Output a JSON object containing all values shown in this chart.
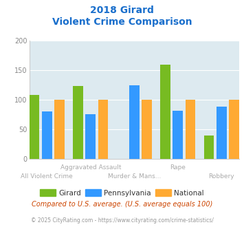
{
  "title_line1": "2018 Girard",
  "title_line2": "Violent Crime Comparison",
  "groups": [
    {
      "girard": 108,
      "pennsylvania": 80,
      "national": 100
    },
    {
      "girard": 123,
      "pennsylvania": 76,
      "national": 100
    },
    {
      "girard": 0,
      "pennsylvania": 125,
      "national": 100
    },
    {
      "girard": 160,
      "pennsylvania": 82,
      "national": 100
    },
    {
      "girard": 40,
      "pennsylvania": 89,
      "national": 100
    }
  ],
  "top_xlabels": [
    "",
    "Aggravated Assault",
    "",
    "Rape",
    ""
  ],
  "bot_xlabels": [
    "All Violent Crime",
    "",
    "Murder & Mans...",
    "",
    "Robbery"
  ],
  "ylim": [
    0,
    200
  ],
  "yticks": [
    0,
    50,
    100,
    150,
    200
  ],
  "color_girard": "#77bb22",
  "color_pennsylvania": "#3399ff",
  "color_national": "#ffaa33",
  "bg_color": "#ddeaf0",
  "title_color": "#1a6fcc",
  "xlabel_color": "#aaaaaa",
  "footer_note": "Compared to U.S. average. (U.S. average equals 100)",
  "footer_credit": "© 2025 CityRating.com - https://www.cityrating.com/crime-statistics/",
  "legend_labels": [
    "Girard",
    "Pennsylvania",
    "National"
  ]
}
